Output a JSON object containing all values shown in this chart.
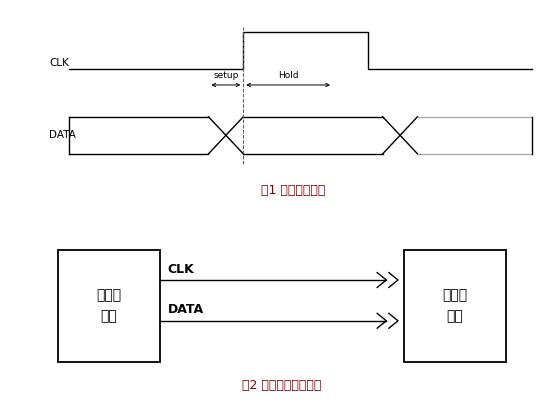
{
  "bg_color": "#ffffff",
  "fig_width": 5.53,
  "fig_height": 4.03,
  "fig1_caption": "图1 信号采样实例",
  "fig2_caption": "图2 源同步系统拓扑图",
  "clk_label": "CLK",
  "data_label": "DATA",
  "setup_label": "setup",
  "hold_label": "Hold",
  "sender_label": "发送端\n器件",
  "receiver_label": "接收端\n器件",
  "clk_arrow_label": "CLK",
  "data_arrow_label": "DATA",
  "text_color": "#000000",
  "line_color": "#000000",
  "box_color": "#000000",
  "caption_color": "#8B0000",
  "lw": 1.0
}
